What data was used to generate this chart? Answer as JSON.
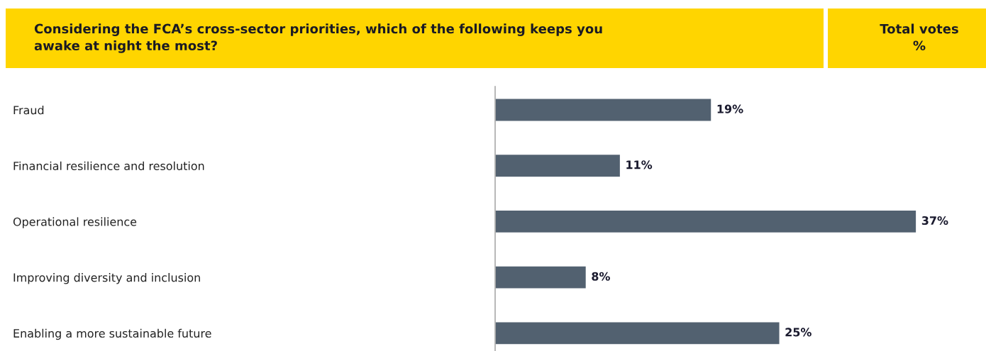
{
  "chart_data": {
    "type": "bar",
    "orientation": "horizontal",
    "title": "Considering the FCA’s cross-sector priorities, which of the following keeps you\nawake at night the most?",
    "xlabel": "Total votes\n%",
    "categories": [
      "Fraud",
      "Financial resilience and resolution",
      "Operational resilience",
      "Improving diversity and inclusion",
      "Enabling a more sustainable future"
    ],
    "values": [
      19,
      11,
      37,
      8,
      25
    ],
    "value_labels": [
      "19%",
      "11%",
      "37%",
      "8%",
      "25%"
    ],
    "color": "#526170",
    "grid": false,
    "legend": false
  }
}
